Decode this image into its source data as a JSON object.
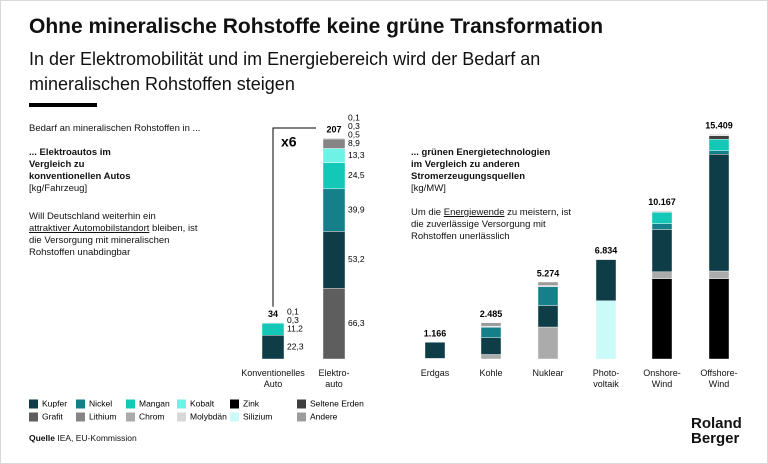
{
  "title": "Ohne mineralische Rohstoffe keine grüne Transformation",
  "subtitle": "In der Elektromobilität und im Energiebereich wird der Bedarf an\nmineralischen Rohstoffen steigen",
  "intro": "Bedarf an mineralischen Rohstoffen in ...",
  "legend": [
    {
      "name": "Kupfer",
      "color": "#0e3d47"
    },
    {
      "name": "Nickel",
      "color": "#16808a"
    },
    {
      "name": "Mangan",
      "color": "#13c8b6"
    },
    {
      "name": "Kobalt",
      "color": "#6ff2e6"
    },
    {
      "name": "Zink",
      "color": "#000000"
    },
    {
      "name": "Seltene Erden",
      "color": "#3f3f3f"
    },
    {
      "name": "Grafit",
      "color": "#5e5e5e"
    },
    {
      "name": "Lithium",
      "color": "#858585"
    },
    {
      "name": "Chrom",
      "color": "#ababab"
    },
    {
      "name": "Molybdän",
      "color": "#d8d8d8"
    },
    {
      "name": "Silizium",
      "color": "#cbfbf8"
    },
    {
      "name": "Andere",
      "color": "#9c9c9c"
    }
  ],
  "chart_data": [
    {
      "type": "stacked-bar",
      "heading": "... Elektroautos im\nVergleich zu\nkonventionellen Autos",
      "unit": "[kg/Fahrzeug]",
      "note": [
        "Will Deutschland weiterhin ein ",
        "attraktiver Automobilstandort",
        " bleiben, ist die Versorgung mit mineralischen Rohstoffen unabdingbar"
      ],
      "multiplier": "x6",
      "categories": [
        "Konventionelles\nAuto",
        "Elektro-\nauto"
      ],
      "totals": [
        34,
        207
      ],
      "series": [
        {
          "values": [
            22.3,
            53.2
          ],
          "value_labels": [
            "22,3",
            "53,2"
          ]
        },
        {
          "values": [
            null,
            39.9
          ],
          "value_labels": [
            null,
            "39,9"
          ]
        },
        {
          "values": [
            11.2,
            24.5
          ],
          "value_labels": [
            "11,2",
            "24,5"
          ]
        },
        {
          "values": [
            null,
            13.3
          ],
          "value_labels": [
            null,
            "13,3"
          ]
        },
        {
          "values": [
            0.1,
            0.1
          ],
          "value_labels": [
            "0,1",
            "0,1"
          ]
        },
        {
          "values": [
            null,
            0.5
          ],
          "value_labels": [
            null,
            "0,5"
          ]
        },
        {
          "values": [
            null,
            66.3
          ],
          "value_labels": [
            null,
            "66,3"
          ]
        },
        {
          "values": [
            null,
            8.9
          ],
          "value_labels": [
            null,
            "8,9"
          ]
        },
        {
          "values": [
            null,
            null
          ]
        },
        {
          "values": [
            null,
            null
          ]
        },
        {
          "values": [
            null,
            null
          ]
        },
        {
          "values": [
            0.3,
            0.3
          ],
          "value_labels": [
            "0,3",
            "0,3"
          ]
        }
      ]
    },
    {
      "type": "stacked-bar",
      "heading": "... grünen Energietechnologien\nim Vergleich zu anderen\nStromerzeugungsquellen",
      "unit": "[kg/MW]",
      "note": [
        "Um die ",
        "Energiewende",
        " zu meistern, ist die zuverlässige Versorgung mit Rohstoffen unerlässlich"
      ],
      "categories": [
        "Erdgas",
        "Kohle",
        "Nuklear",
        "Photo-\nvoltaik",
        "Onshore-\nWind",
        "Offshore-\nWind"
      ],
      "totals": [
        1166,
        2485,
        5274,
        6834,
        10167,
        15409
      ],
      "total_labels": [
        "1.166",
        "2.485",
        "5.274",
        "6.834",
        "10.167",
        "15.409"
      ],
      "series": [
        {
          "values": [
            1100,
            1150,
            1473,
            2822,
            2900,
            8000
          ]
        },
        {
          "values": [
            16,
            721,
            1297,
            null,
            404,
            240
          ]
        },
        {
          "values": [
            null,
            5,
            null,
            null,
            780,
            790
          ]
        },
        {
          "values": [
            null,
            null,
            null,
            null,
            null,
            null
          ]
        },
        {
          "values": [
            null,
            null,
            null,
            null,
            5500,
            5500
          ]
        },
        {
          "values": [
            null,
            null,
            null,
            null,
            14,
            239
          ]
        },
        {
          "values": [
            null,
            null,
            null,
            null,
            null,
            null
          ]
        },
        {
          "values": [
            null,
            null,
            null,
            null,
            null,
            null
          ]
        },
        {
          "values": [
            48,
            308,
            2190,
            null,
            470,
            525
          ]
        },
        {
          "values": [
            null,
            66,
            71,
            null,
            99,
            109
          ]
        },
        {
          "values": [
            null,
            null,
            null,
            3990,
            null,
            null
          ]
        },
        {
          "values": [
            2,
            235,
            243,
            22,
            null,
            6
          ]
        }
      ]
    }
  ],
  "source_label": "Quelle",
  "source": "IEA, EU-Kommission",
  "logo": "Roland\nBerger"
}
